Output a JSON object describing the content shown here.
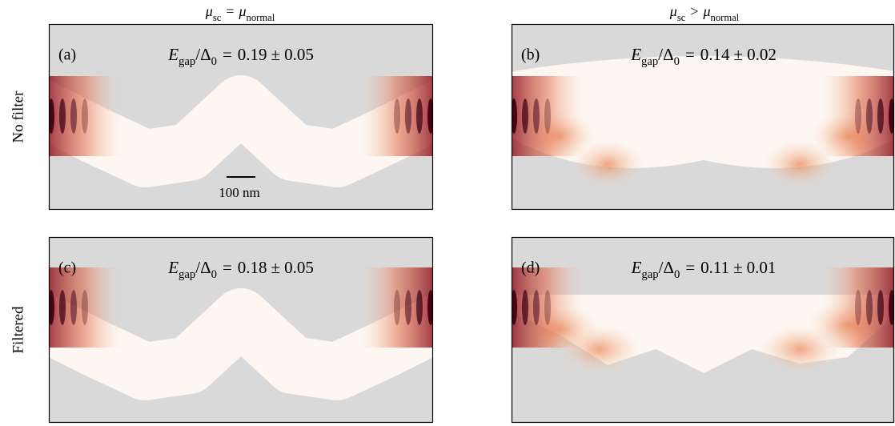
{
  "column_titles": [
    {
      "symbol": "μ",
      "sub": "sc",
      "relation": "=",
      "symbol2": "μ",
      "sub2": "normal"
    },
    {
      "symbol": "μ",
      "sub": "sc",
      "relation": ">",
      "symbol2": "μ",
      "sub2": "normal"
    }
  ],
  "row_labels": [
    "No filter",
    "Filtered"
  ],
  "panels": [
    {
      "label": "(a)",
      "annotation": {
        "numerator": "E",
        "numerator_sub": "gap",
        "slash": "/",
        "denominator": "Δ",
        "denominator_sub": "0",
        "equals": "=",
        "value": 0.19,
        "pm": "±",
        "error": 0.05
      }
    },
    {
      "label": "(b)",
      "annotation": {
        "numerator": "E",
        "numerator_sub": "gap",
        "slash": "/",
        "denominator": "Δ",
        "denominator_sub": "0",
        "equals": "=",
        "value": 0.14,
        "pm": "±",
        "error": 0.02
      }
    },
    {
      "label": "(c)",
      "annotation": {
        "numerator": "E",
        "numerator_sub": "gap",
        "slash": "/",
        "denominator": "Δ",
        "denominator_sub": "0",
        "equals": "=",
        "value": 0.18,
        "pm": "±",
        "error": 0.05
      }
    },
    {
      "label": "(d)",
      "annotation": {
        "numerator": "E",
        "numerator_sub": "gap",
        "slash": "/",
        "denominator": "Δ",
        "denominator_sub": "0",
        "equals": "=",
        "value": 0.11,
        "pm": "±",
        "error": 0.01
      }
    }
  ],
  "scale_bar": "100 nm"
}
